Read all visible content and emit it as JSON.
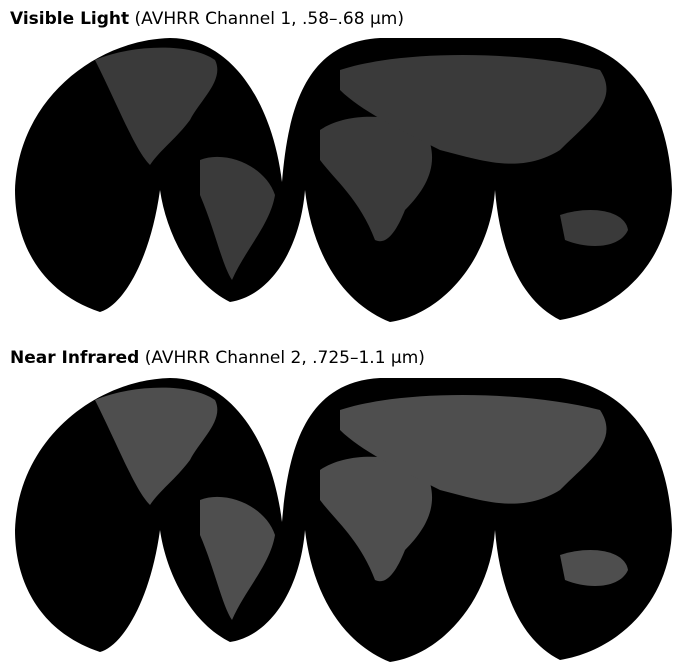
{
  "panels": [
    {
      "title_bold": "Visible Light",
      "title_rest": "(AVHRR Channel 1, .58–.68 µm)"
    },
    {
      "title_bold": "Near Infrared",
      "title_rest": "(AVHRR Channel 2, .725–1.1 µm)"
    }
  ]
}
